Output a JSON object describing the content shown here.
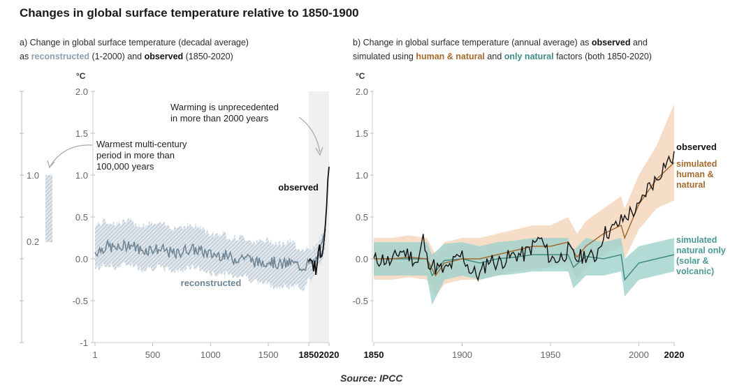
{
  "title": "Changes in global surface temperature relative to 1850-1900",
  "source": "Source: IPCC",
  "colors": {
    "reconstructed": "#8ba0b1",
    "observed": "#111111",
    "human_natural": "#a46a2e",
    "human_natural_band": "#f5d7bd",
    "natural_only": "#3f8a85",
    "natural_only_band": "#9fd2cc",
    "shade": "#f0f0f0"
  },
  "panel_a": {
    "subtitle_line1": "a) Change in global surface temperature (decadal average)",
    "subtitle_line2_pre": "as ",
    "subtitle_reconstructed": "reconstructed",
    "subtitle_line2_mid": " (1-2000) and ",
    "subtitle_observed": "observed",
    "subtitle_line2_post": " (1850-2020)",
    "unit": "°C",
    "y_ticks": [
      "2.0",
      "1.5",
      "1.0",
      "0.5",
      "0.0",
      "-0.5",
      "-1"
    ],
    "x_ticks": [
      "1",
      "500",
      "1000",
      "1500",
      "1850",
      "2020"
    ],
    "annotation_unprecedented_1": "Warming is unprecedented",
    "annotation_unprecedented_2": "in more than 2000 years",
    "annotation_warmest_1": "Warmest multi-century",
    "annotation_warmest_2": "period in more than",
    "annotation_warmest_3": "100,000 years",
    "label_observed": "observed",
    "label_reconstructed": "reconstructed",
    "side_bar_top": "1.0",
    "side_bar_bottom": "0.2"
  },
  "panel_b": {
    "subtitle_line1_pre": "b) Change in global surface temperature (annual average) as ",
    "subtitle_observed": "observed",
    "subtitle_line1_post": " and",
    "subtitle_line2_pre": "simulated using ",
    "subtitle_human": "human & natural",
    "subtitle_line2_mid": " and ",
    "subtitle_natural": "only natural",
    "subtitle_line2_post": " factors (both 1850-2020)",
    "unit": "°C",
    "y_ticks": [
      "2.0",
      "1.5",
      "1.0",
      "0.5",
      "0.0",
      "-0.5"
    ],
    "x_ticks": [
      "1850",
      "1900",
      "1950",
      "2000",
      "2020"
    ],
    "label_observed": "observed",
    "label_human_1": "simulated",
    "label_human_2": "human &",
    "label_human_3": "natural",
    "label_natural_1": "simulated",
    "label_natural_2": "natural only",
    "label_natural_3": "(solar &",
    "label_natural_4": "volcanic)"
  },
  "chart_data": [
    {
      "type": "line",
      "title": "a) Change in global surface temperature (decadal average) as reconstructed (1-2000) and observed (1850-2020)",
      "ylabel": "°C",
      "ylim": [
        -1,
        2
      ],
      "xlim": [
        1,
        2020
      ],
      "grid": false,
      "series": [
        {
          "name": "reconstructed",
          "x": [
            1,
            100,
            200,
            300,
            400,
            500,
            600,
            700,
            800,
            900,
            1000,
            1100,
            1200,
            1300,
            1400,
            1500,
            1600,
            1700,
            1800,
            1850,
            1900,
            1950,
            2000
          ],
          "values": [
            0.08,
            0.15,
            0.12,
            0.18,
            0.1,
            0.12,
            0.1,
            0.05,
            0.12,
            0.1,
            0.05,
            0.05,
            0.0,
            0.03,
            -0.05,
            -0.02,
            -0.07,
            -0.05,
            -0.1,
            -0.05,
            -0.05,
            0.1,
            0.35
          ],
          "lower": [
            -0.12,
            -0.08,
            -0.1,
            -0.05,
            -0.12,
            -0.1,
            -0.12,
            -0.15,
            -0.1,
            -0.12,
            -0.18,
            -0.18,
            -0.2,
            -0.2,
            -0.28,
            -0.3,
            -0.35,
            -0.32,
            -0.35,
            -0.25,
            -0.22,
            -0.05,
            0.2
          ],
          "upper": [
            0.4,
            0.45,
            0.42,
            0.45,
            0.4,
            0.42,
            0.4,
            0.38,
            0.4,
            0.38,
            0.3,
            0.3,
            0.25,
            0.25,
            0.2,
            0.22,
            0.18,
            0.2,
            0.1,
            0.15,
            0.12,
            0.25,
            0.5
          ]
        },
        {
          "name": "observed",
          "x": [
            1850,
            1860,
            1870,
            1880,
            1890,
            1900,
            1910,
            1920,
            1930,
            1940,
            1950,
            1960,
            1970,
            1980,
            1990,
            2000,
            2010,
            2020
          ],
          "values": [
            -0.03,
            0.0,
            -0.02,
            -0.05,
            -0.1,
            -0.05,
            -0.15,
            -0.02,
            0.05,
            0.15,
            0.08,
            0.07,
            0.1,
            0.3,
            0.45,
            0.65,
            0.9,
            1.1
          ]
        }
      ]
    },
    {
      "type": "line",
      "title": "b) Change in global surface temperature (annual average) as observed and simulated using human & natural and only natural factors (both 1850-2020)",
      "ylabel": "°C",
      "ylim": [
        -1,
        2
      ],
      "xlim": [
        1850,
        2020
      ],
      "grid": false,
      "series": [
        {
          "name": "observed",
          "x": [
            1850,
            1855,
            1860,
            1865,
            1870,
            1875,
            1878,
            1880,
            1885,
            1890,
            1895,
            1900,
            1905,
            1910,
            1915,
            1920,
            1925,
            1930,
            1935,
            1940,
            1944,
            1950,
            1955,
            1960,
            1965,
            1970,
            1975,
            1980,
            1985,
            1990,
            1995,
            2000,
            2005,
            2010,
            2015,
            2020
          ],
          "values": [
            -0.02,
            0.0,
            -0.05,
            0.1,
            0.05,
            -0.05,
            0.25,
            0.0,
            -0.1,
            -0.15,
            -0.05,
            0.05,
            -0.15,
            -0.2,
            0.0,
            -0.05,
            0.0,
            0.05,
            0.05,
            0.15,
            0.25,
            0.0,
            0.0,
            0.1,
            0.0,
            0.05,
            0.0,
            0.3,
            0.35,
            0.45,
            0.55,
            0.6,
            0.85,
            0.95,
            1.15,
            1.2
          ]
        },
        {
          "name": "simulated human & natural",
          "x": [
            1850,
            1860,
            1870,
            1880,
            1885,
            1890,
            1900,
            1910,
            1920,
            1930,
            1940,
            1950,
            1960,
            1965,
            1970,
            1980,
            1990,
            1992,
            2000,
            2010,
            2020
          ],
          "values": [
            0.0,
            0.0,
            0.02,
            0.0,
            -0.2,
            -0.05,
            0.0,
            0.0,
            0.05,
            0.1,
            0.15,
            0.15,
            0.2,
            0.02,
            0.15,
            0.3,
            0.4,
            0.25,
            0.65,
            0.95,
            1.15
          ],
          "lower": [
            -0.25,
            -0.25,
            -0.22,
            -0.25,
            -0.45,
            -0.3,
            -0.25,
            -0.25,
            -0.2,
            -0.15,
            -0.12,
            -0.1,
            -0.05,
            -0.25,
            -0.1,
            0.05,
            0.15,
            0.0,
            0.35,
            0.6,
            0.7
          ],
          "upper": [
            0.25,
            0.25,
            0.28,
            0.25,
            0.05,
            0.2,
            0.25,
            0.25,
            0.3,
            0.35,
            0.4,
            0.4,
            0.5,
            0.3,
            0.45,
            0.6,
            0.75,
            0.6,
            1.0,
            1.35,
            1.85
          ]
        },
        {
          "name": "simulated natural only",
          "x": [
            1850,
            1860,
            1870,
            1880,
            1883,
            1890,
            1900,
            1910,
            1920,
            1930,
            1940,
            1950,
            1960,
            1963,
            1970,
            1980,
            1990,
            1992,
            2000,
            2010,
            2020
          ],
          "values": [
            0.0,
            0.0,
            0.0,
            0.0,
            -0.2,
            -0.02,
            0.0,
            -0.05,
            0.0,
            0.02,
            0.05,
            0.05,
            0.05,
            -0.1,
            0.03,
            0.0,
            0.05,
            -0.25,
            -0.05,
            0.0,
            0.05
          ],
          "lower": [
            -0.2,
            -0.2,
            -0.2,
            -0.2,
            -0.55,
            -0.25,
            -0.2,
            -0.25,
            -0.2,
            -0.18,
            -0.15,
            -0.15,
            -0.15,
            -0.35,
            -0.2,
            -0.2,
            -0.15,
            -0.45,
            -0.25,
            -0.2,
            -0.15
          ],
          "upper": [
            0.2,
            0.2,
            0.2,
            0.2,
            0.05,
            0.18,
            0.2,
            0.15,
            0.2,
            0.22,
            0.25,
            0.25,
            0.25,
            0.1,
            0.25,
            0.2,
            0.25,
            0.0,
            0.15,
            0.2,
            0.25
          ]
        }
      ]
    }
  ]
}
